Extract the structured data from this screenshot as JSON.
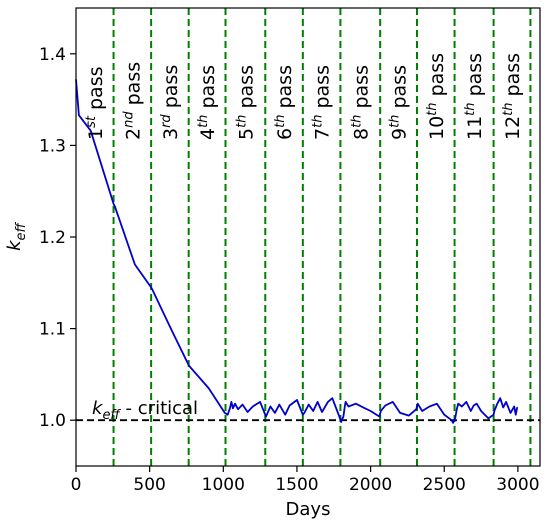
{
  "chart_data": {
    "type": "line",
    "xlabel": "Days",
    "ylabel_main": "k",
    "ylabel_sub": "eff",
    "xlim": [
      0,
      3150
    ],
    "ylim": [
      0.95,
      1.45
    ],
    "xticks": [
      0,
      500,
      1000,
      1500,
      2000,
      2500,
      3000
    ],
    "yticks": [
      1.0,
      1.1,
      1.2,
      1.3,
      1.4
    ],
    "ytick_labels": [
      "1.0",
      "1.1",
      "1.2",
      "1.3",
      "1.4"
    ],
    "grid": false,
    "series": [
      {
        "color": "#0000cc",
        "x": [
          0,
          20,
          100,
          255,
          265,
          400,
          510,
          520,
          650,
          765,
          775,
          900,
          1010,
          1030,
          1045,
          1055,
          1065,
          1080,
          1100,
          1130,
          1165,
          1200,
          1250,
          1280,
          1290,
          1320,
          1350,
          1380,
          1420,
          1450,
          1500,
          1540,
          1550,
          1580,
          1610,
          1640,
          1670,
          1710,
          1740,
          1790,
          1800,
          1815,
          1825,
          1830,
          1850,
          1900,
          1950,
          2000,
          2040,
          2060,
          2070,
          2100,
          2150,
          2200,
          2260,
          2310,
          2320,
          2350,
          2400,
          2450,
          2500,
          2550,
          2560,
          2575,
          2585,
          2595,
          2620,
          2650,
          2680,
          2700,
          2720,
          2750,
          2800,
          2835,
          2840,
          2860,
          2880,
          2900,
          2920,
          2950,
          2975,
          2985,
          2995
        ],
        "y": [
          1.372,
          1.333,
          1.316,
          1.236,
          1.233,
          1.17,
          1.145,
          1.142,
          1.098,
          1.06,
          1.058,
          1.035,
          1.008,
          1.006,
          1.013,
          1.02,
          1.013,
          1.018,
          1.012,
          1.017,
          1.009,
          1.015,
          1.02,
          1.008,
          1.004,
          1.015,
          1.008,
          1.017,
          1.006,
          1.016,
          1.022,
          1.006,
          1.008,
          1.017,
          1.01,
          1.02,
          1.009,
          1.02,
          1.024,
          1.003,
          0.998,
          1.004,
          1.015,
          1.02,
          1.015,
          1.018,
          1.014,
          1.01,
          1.006,
          1.004,
          1.01,
          1.016,
          1.02,
          1.008,
          1.005,
          1.012,
          1.018,
          1.01,
          1.015,
          1.018,
          1.006,
          1.0,
          0.997,
          1.003,
          1.012,
          1.018,
          1.015,
          1.02,
          1.01,
          1.016,
          1.018,
          1.01,
          1.002,
          1.006,
          1.01,
          1.018,
          1.024,
          1.014,
          1.02,
          1.008,
          1.015,
          1.006,
          1.014
        ]
      }
    ],
    "critical_line": {
      "y": 1.0,
      "color": "#000000",
      "label_main": "k",
      "label_sub": "eff",
      "label_rest": " - critical"
    },
    "passes": {
      "color": "#008000",
      "x": [
        255,
        510,
        765,
        1015,
        1285,
        1540,
        1795,
        2065,
        2315,
        2570,
        2835,
        3085
      ],
      "labels": [
        {
          "num": "1",
          "sup": "st",
          "word": " pass"
        },
        {
          "num": "2",
          "sup": "nd",
          "word": " pass"
        },
        {
          "num": "3",
          "sup": "rd",
          "word": " pass"
        },
        {
          "num": "4",
          "sup": "th",
          "word": " pass"
        },
        {
          "num": "5",
          "sup": "th",
          "word": " pass"
        },
        {
          "num": "6",
          "sup": "th",
          "word": " pass"
        },
        {
          "num": "7",
          "sup": "th",
          "word": " pass"
        },
        {
          "num": "8",
          "sup": "th",
          "word": " pass"
        },
        {
          "num": "9",
          "sup": "th",
          "word": " pass"
        },
        {
          "num": "10",
          "sup": "th",
          "word": " pass"
        },
        {
          "num": "11",
          "sup": "th",
          "word": " pass"
        },
        {
          "num": "12",
          "sup": "th",
          "word": " pass"
        }
      ]
    }
  }
}
